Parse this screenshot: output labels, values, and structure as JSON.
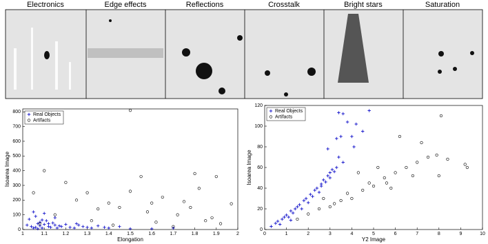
{
  "panels": [
    {
      "title": "Electronics"
    },
    {
      "title": "Edge effects"
    },
    {
      "title": "Reflections"
    },
    {
      "title": "Crosstalk"
    },
    {
      "title": "Bright stars"
    },
    {
      "title": "Saturation"
    }
  ],
  "chart_data": [
    {
      "type": "scatter",
      "xlabel": "Elongation",
      "ylabel": "Isoarea Image",
      "xlim": [
        1,
        2
      ],
      "xticks": [
        1,
        1.1,
        1.2,
        1.3,
        1.4,
        1.5,
        1.6,
        1.7,
        1.8,
        1.9,
        2
      ],
      "ylim": [
        0,
        820
      ],
      "yticks": [
        0,
        100,
        200,
        300,
        400,
        500,
        600,
        700,
        800
      ],
      "legend": "upper-left",
      "series": [
        {
          "name": "Real Objects",
          "color": "#1a1acc",
          "marker": "+",
          "x": [
            1.02,
            1.04,
            1.05,
            1.06,
            1.07,
            1.08,
            1.09,
            1.1,
            1.11,
            1.12,
            1.13,
            1.14,
            1.15,
            1.16,
            1.17,
            1.18,
            1.2,
            1.22,
            1.24,
            1.26,
            1.28,
            1.3,
            1.32,
            1.35,
            1.38,
            1.4,
            1.45,
            1.5,
            1.03,
            1.06,
            1.08,
            1.1,
            1.12,
            1.15,
            1.05,
            1.07,
            1.09,
            1.25,
            1.6,
            1.7
          ],
          "values": [
            30,
            20,
            120,
            15,
            40,
            25,
            10,
            35,
            60,
            20,
            15,
            45,
            30,
            10,
            25,
            20,
            35,
            15,
            10,
            30,
            20,
            15,
            10,
            25,
            15,
            10,
            20,
            5,
            70,
            90,
            50,
            110,
            40,
            80,
            10,
            5,
            65,
            40,
            5,
            10
          ]
        },
        {
          "name": "Artifacts",
          "color": "#000000",
          "marker": "o",
          "x": [
            1.1,
            1.2,
            1.5,
            1.6,
            1.9,
            1.8,
            1.82,
            1.75,
            1.85,
            1.97,
            1.05,
            1.15,
            1.3,
            1.4,
            1.55,
            1.65,
            1.7,
            1.45,
            1.25,
            1.35,
            1.62,
            1.78,
            1.88,
            1.92,
            1.08,
            1.5,
            1.72,
            1.42,
            1.32,
            1.58
          ],
          "values": [
            400,
            320,
            810,
            180,
            360,
            380,
            280,
            190,
            60,
            175,
            250,
            100,
            250,
            180,
            360,
            220,
            20,
            150,
            200,
            140,
            50,
            150,
            80,
            40,
            40,
            260,
            100,
            30,
            60,
            120
          ]
        }
      ]
    },
    {
      "type": "scatter",
      "xlabel": "Y2 Image",
      "ylabel": "Isoarea Image",
      "xlim": [
        0,
        10
      ],
      "xticks": [
        0,
        1,
        2,
        3,
        4,
        5,
        6,
        7,
        8,
        9,
        10
      ],
      "ylim": [
        0,
        120
      ],
      "yticks": [
        0,
        20,
        40,
        60,
        80,
        100,
        120
      ],
      "legend": "upper-left",
      "series": [
        {
          "name": "Real Objects",
          "color": "#1a1acc",
          "marker": "+",
          "x": [
            0.3,
            0.5,
            0.6,
            0.8,
            0.9,
            1.0,
            1.1,
            1.2,
            1.3,
            1.4,
            1.5,
            1.6,
            1.7,
            1.8,
            1.9,
            2.0,
            2.1,
            2.2,
            2.3,
            2.4,
            2.5,
            2.6,
            2.7,
            2.8,
            2.9,
            3.0,
            3.1,
            3.2,
            3.3,
            3.4,
            3.5,
            3.6,
            3.8,
            4.0,
            4.2,
            4.5,
            4.8,
            3.4,
            3.3,
            2.9,
            3.6,
            4.1,
            3.0,
            2.6,
            1.2,
            0.7
          ],
          "values": [
            3,
            6,
            8,
            10,
            12,
            14,
            12,
            18,
            16,
            20,
            22,
            24,
            20,
            28,
            30,
            26,
            34,
            32,
            38,
            40,
            36,
            44,
            48,
            46,
            52,
            50,
            58,
            56,
            60,
            70,
            90,
            112,
            104,
            90,
            102,
            95,
            115,
            113,
            88,
            78,
            65,
            80,
            55,
            42,
            9,
            5
          ]
        },
        {
          "name": "Artifacts",
          "color": "#000000",
          "marker": "o",
          "x": [
            1.5,
            2.0,
            2.5,
            3.0,
            3.5,
            4.0,
            4.5,
            5.0,
            5.5,
            6.0,
            6.5,
            7.0,
            7.5,
            8.0,
            8.1,
            9.2,
            9.3,
            6.2,
            5.2,
            4.8,
            3.8,
            3.2,
            2.7,
            7.2,
            5.8,
            6.8,
            8.4,
            7.9,
            4.3,
            5.6
          ],
          "values": [
            10,
            15,
            20,
            22,
            28,
            30,
            38,
            42,
            50,
            55,
            60,
            65,
            70,
            52,
            110,
            63,
            60,
            90,
            60,
            45,
            35,
            25,
            30,
            84,
            40,
            52,
            68,
            72,
            55,
            45
          ]
        }
      ]
    }
  ]
}
